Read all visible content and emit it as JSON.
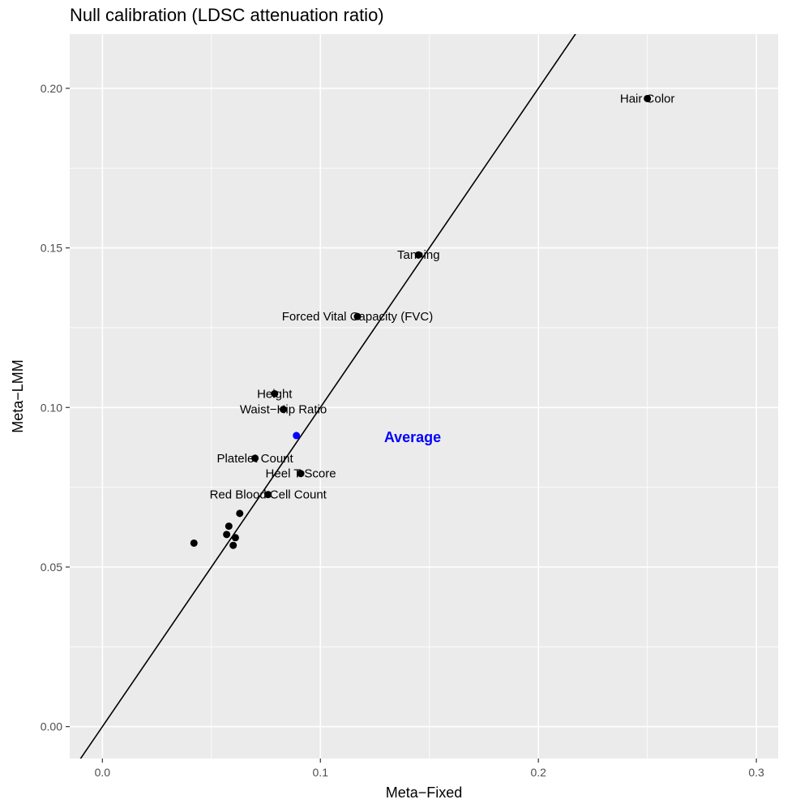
{
  "chart_data": {
    "type": "scatter",
    "title": "Null calibration (LDSC attenuation ratio)",
    "xlabel": "Meta−Fixed",
    "ylabel": "Meta−LMM",
    "xlim": [
      -0.015,
      0.31
    ],
    "ylim": [
      -0.01,
      0.217
    ],
    "x_ticks": [
      0.0,
      0.1,
      0.2,
      0.3
    ],
    "x_tick_labels": [
      "0.0",
      "0.1",
      "0.2",
      "0.3"
    ],
    "y_ticks": [
      0.0,
      0.05,
      0.1,
      0.15,
      0.2
    ],
    "y_tick_labels": [
      "0.00",
      "0.05",
      "0.10",
      "0.15",
      "0.20"
    ],
    "grid": true,
    "background": "#ebebeb",
    "grid_color": "#ffffff",
    "point_color": "#000000",
    "reference_line": {
      "slope": 1,
      "intercept": 0,
      "color": "#000000"
    },
    "points": [
      {
        "label": "Hair Color",
        "x": 0.25,
        "y": 0.1968
      },
      {
        "label": "Tanning",
        "x": 0.145,
        "y": 0.1478
      },
      {
        "label": "Forced Vital Capacity (FVC)",
        "x": 0.117,
        "y": 0.1285
      },
      {
        "label": "Height",
        "x": 0.079,
        "y": 0.1043
      },
      {
        "label": "Waist−Hip Ratio",
        "x": 0.083,
        "y": 0.0994
      },
      {
        "label": "Platelet Count",
        "x": 0.07,
        "y": 0.0841
      },
      {
        "label": "Heel T Score",
        "x": 0.091,
        "y": 0.0793
      },
      {
        "label": "Red Blood Cell Count",
        "x": 0.076,
        "y": 0.0727
      },
      {
        "label": "",
        "x": 0.063,
        "y": 0.0668
      },
      {
        "label": "",
        "x": 0.058,
        "y": 0.0628
      },
      {
        "label": "",
        "x": 0.057,
        "y": 0.0602
      },
      {
        "label": "",
        "x": 0.061,
        "y": 0.0592
      },
      {
        "label": "",
        "x": 0.06,
        "y": 0.0568
      },
      {
        "label": "",
        "x": 0.042,
        "y": 0.0575
      }
    ],
    "average": {
      "label": "Average",
      "x": 0.089,
      "y": 0.0912,
      "color": "#0000ff"
    }
  }
}
